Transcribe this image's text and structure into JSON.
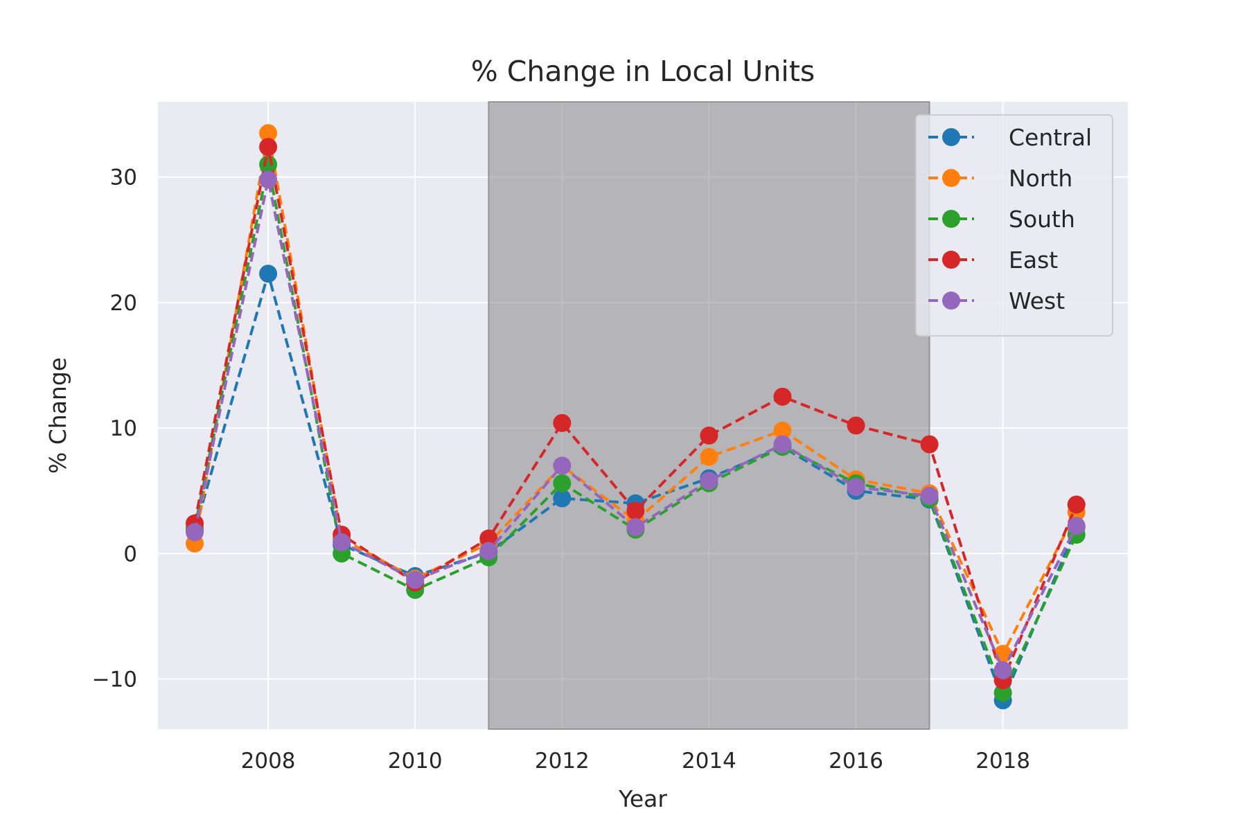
{
  "chart_data": {
    "type": "line",
    "title": "% Change in Local Units",
    "xlabel": "Year",
    "ylabel": "% Change",
    "x": [
      2007,
      2008,
      2009,
      2010,
      2011,
      2012,
      2013,
      2014,
      2015,
      2016,
      2017,
      2018,
      2019
    ],
    "xlim": [
      2006.5,
      2019.7
    ],
    "ylim": [
      -14,
      36
    ],
    "xticks": [
      2008,
      2010,
      2012,
      2014,
      2016,
      2018
    ],
    "yticks": [
      -10,
      0,
      10,
      20,
      30
    ],
    "ytick_labels": [
      "−10",
      "0",
      "10",
      "20",
      "30"
    ],
    "shaded_region": {
      "x_start": 2011,
      "x_end": 2017
    },
    "grid": true,
    "legend_position": "top-right",
    "series": [
      {
        "name": "Central",
        "color": "#1f77b4",
        "values": [
          1.8,
          22.3,
          0.7,
          -1.8,
          0.1,
          4.4,
          4.0,
          6.0,
          8.5,
          5.0,
          4.3,
          -11.7,
          2.1
        ]
      },
      {
        "name": "North",
        "color": "#ff7f0e",
        "values": [
          0.8,
          33.5,
          1.2,
          -2.0,
          0.8,
          7.0,
          2.6,
          7.7,
          9.8,
          5.9,
          4.8,
          -8.0,
          3.3
        ]
      },
      {
        "name": "South",
        "color": "#2ca02c",
        "values": [
          2.0,
          31.0,
          0.0,
          -2.9,
          -0.3,
          5.6,
          1.9,
          5.6,
          8.5,
          5.6,
          4.4,
          -11.1,
          1.5
        ]
      },
      {
        "name": "East",
        "color": "#d62728",
        "values": [
          2.4,
          32.4,
          1.5,
          -2.3,
          1.2,
          10.4,
          3.4,
          9.4,
          12.5,
          10.2,
          8.7,
          -10.1,
          3.9
        ]
      },
      {
        "name": "West",
        "color": "#9467bd",
        "values": [
          1.7,
          29.8,
          0.9,
          -2.1,
          0.2,
          7.0,
          2.1,
          5.8,
          8.7,
          5.3,
          4.6,
          -9.3,
          2.2
        ]
      }
    ]
  }
}
